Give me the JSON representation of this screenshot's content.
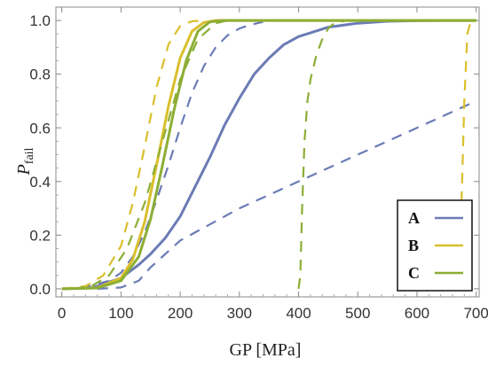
{
  "chart_data": {
    "type": "line",
    "title": "",
    "xlabel": "GP [MPa]",
    "ylabel_main": "P",
    "ylabel_sub": "fail",
    "xlim": [
      -10,
      705
    ],
    "ylim": [
      -0.03,
      1.05
    ],
    "xticks": [
      0,
      100,
      200,
      300,
      400,
      500,
      600,
      700
    ],
    "yticks": [
      0.0,
      0.2,
      0.4,
      0.6,
      0.8,
      1.0
    ],
    "ytick_labels": [
      "0.0",
      "0.2",
      "0.4",
      "0.6",
      "0.8",
      "1.0"
    ],
    "legend_position": "bottom-right",
    "colors": {
      "A": "#6b7bb5",
      "B": "#d9bf2b",
      "C": "#8cae35"
    },
    "series": [
      {
        "name": "A",
        "color": "#6b7bb5",
        "style": "solid",
        "x": [
          0,
          50,
          100,
          130,
          150,
          175,
          200,
          225,
          250,
          275,
          300,
          325,
          350,
          375,
          400,
          450,
          500,
          550,
          600,
          650,
          700
        ],
        "y": [
          0.0,
          0.003,
          0.04,
          0.09,
          0.13,
          0.19,
          0.27,
          0.38,
          0.49,
          0.61,
          0.71,
          0.8,
          0.86,
          0.91,
          0.94,
          0.975,
          0.99,
          0.997,
          0.999,
          1.0,
          1.0
        ]
      },
      {
        "name": "A",
        "color": "#6b7bb5",
        "style": "dashed",
        "x": [
          0,
          40,
          80,
          100,
          120,
          140,
          160,
          180,
          200,
          220,
          240,
          260,
          280,
          300,
          320,
          340
        ],
        "y": [
          0.0,
          0.006,
          0.03,
          0.06,
          0.12,
          0.21,
          0.33,
          0.46,
          0.6,
          0.73,
          0.83,
          0.9,
          0.945,
          0.97,
          0.985,
          0.995
        ]
      },
      {
        "name": "A",
        "color": "#6b7bb5",
        "style": "dashed",
        "x": [
          60,
          100,
          130,
          150,
          200,
          300,
          400,
          500,
          600,
          700
        ],
        "y": [
          0.0,
          0.005,
          0.03,
          0.08,
          0.18,
          0.3,
          0.4,
          0.5,
          0.6,
          0.7
        ]
      },
      {
        "name": "B",
        "color": "#d9bf2b",
        "style": "solid",
        "x": [
          0,
          60,
          100,
          120,
          140,
          160,
          180,
          200,
          220,
          240,
          260,
          300,
          700
        ],
        "y": [
          0.0,
          0.004,
          0.04,
          0.11,
          0.25,
          0.46,
          0.68,
          0.86,
          0.96,
          0.993,
          1.0,
          1.0,
          1.0
        ]
      },
      {
        "name": "B",
        "color": "#d9bf2b",
        "style": "dashed",
        "x": [
          0,
          40,
          70,
          100,
          120,
          140,
          160,
          180,
          200,
          220,
          240
        ],
        "y": [
          0.0,
          0.01,
          0.05,
          0.16,
          0.32,
          0.53,
          0.75,
          0.91,
          0.98,
          0.997,
          1.0
        ]
      },
      {
        "name": "B",
        "color": "#d9bf2b",
        "style": "dashed",
        "x": [
          650,
          660,
          670,
          675,
          680,
          685,
          690,
          700
        ],
        "y": [
          0.0,
          0.005,
          0.05,
          0.3,
          0.7,
          0.95,
          0.99,
          1.0
        ]
      },
      {
        "name": "C",
        "color": "#8cae35",
        "style": "solid",
        "x": [
          0,
          60,
          100,
          130,
          150,
          170,
          190,
          210,
          230,
          250,
          270,
          300,
          700
        ],
        "y": [
          0.0,
          0.003,
          0.03,
          0.12,
          0.26,
          0.46,
          0.67,
          0.85,
          0.96,
          0.995,
          1.0,
          1.0,
          1.0
        ]
      },
      {
        "name": "C",
        "color": "#8cae35",
        "style": "dashed",
        "x": [
          20,
          50,
          80,
          110,
          140,
          170,
          200,
          230,
          260,
          280
        ],
        "y": [
          0.0,
          0.01,
          0.05,
          0.15,
          0.32,
          0.55,
          0.78,
          0.93,
          0.99,
          1.0
        ]
      },
      {
        "name": "C",
        "color": "#8cae35",
        "style": "dashed",
        "x": [
          400,
          403,
          406,
          410,
          415,
          420,
          430,
          440,
          450,
          460,
          480,
          500,
          700
        ],
        "y": [
          0.0,
          0.05,
          0.3,
          0.55,
          0.7,
          0.78,
          0.87,
          0.93,
          0.97,
          0.99,
          1.0,
          1.0,
          1.0
        ]
      }
    ],
    "legend": [
      {
        "label": "A",
        "color": "#6b7bb5"
      },
      {
        "label": "B",
        "color": "#d9bf2b"
      },
      {
        "label": "C",
        "color": "#8cae35"
      }
    ]
  }
}
